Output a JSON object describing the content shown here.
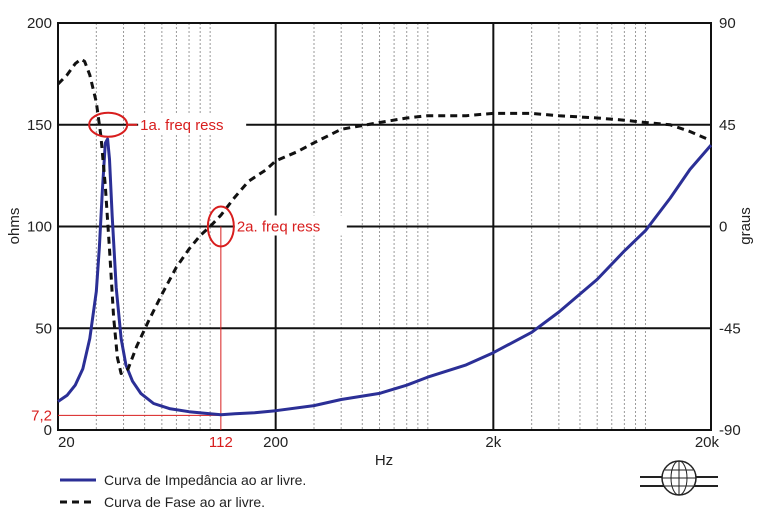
{
  "chart_data": {
    "type": "line",
    "title": "",
    "xlabel": "Hz",
    "ylabel_left": "ohms",
    "ylabel_right": "graus",
    "x_scale": "log",
    "xlim": [
      20,
      20000
    ],
    "ylim_left": [
      0,
      200
    ],
    "ylim_right": [
      -90,
      90
    ],
    "x_ticks": [
      {
        "value": 20,
        "label": "20"
      },
      {
        "value": 200,
        "label": "200"
      },
      {
        "value": 2000,
        "label": "2k"
      },
      {
        "value": 20000,
        "label": "20k"
      }
    ],
    "y_left_ticks": [
      {
        "value": 0,
        "label": "0"
      },
      {
        "value": 50,
        "label": "50"
      },
      {
        "value": 100,
        "label": "100"
      },
      {
        "value": 150,
        "label": "150"
      },
      {
        "value": 200,
        "label": "200"
      }
    ],
    "y_right_ticks": [
      {
        "value": -90,
        "label": "-90"
      },
      {
        "value": -45,
        "label": "-45"
      },
      {
        "value": 0,
        "label": "0"
      },
      {
        "value": 45,
        "label": "45"
      },
      {
        "value": 90,
        "label": "90"
      }
    ],
    "grid": true,
    "legend_position": "bottom-left",
    "series": [
      {
        "name": "Curva de Impedância ao ar livre.",
        "axis": "left",
        "color": "#2b2f96",
        "style": "solid",
        "points": [
          [
            20,
            14
          ],
          [
            22,
            17
          ],
          [
            24,
            22
          ],
          [
            26,
            30
          ],
          [
            28,
            45
          ],
          [
            30,
            68
          ],
          [
            31,
            90
          ],
          [
            32,
            118
          ],
          [
            33,
            141
          ],
          [
            33.8,
            143
          ],
          [
            34.5,
            133
          ],
          [
            35.5,
            105
          ],
          [
            37,
            70
          ],
          [
            39,
            45
          ],
          [
            41,
            32
          ],
          [
            44,
            24
          ],
          [
            48,
            18
          ],
          [
            55,
            13
          ],
          [
            65,
            10.5
          ],
          [
            80,
            9
          ],
          [
            100,
            8
          ],
          [
            112,
            7.5
          ],
          [
            130,
            8
          ],
          [
            160,
            8.5
          ],
          [
            200,
            9.5
          ],
          [
            300,
            12
          ],
          [
            400,
            15
          ],
          [
            600,
            18
          ],
          [
            800,
            22
          ],
          [
            1000,
            26
          ],
          [
            1500,
            32
          ],
          [
            2000,
            38
          ],
          [
            3000,
            48
          ],
          [
            4000,
            58
          ],
          [
            6000,
            74
          ],
          [
            8000,
            88
          ],
          [
            10000,
            98
          ],
          [
            13000,
            114
          ],
          [
            16000,
            128
          ],
          [
            20000,
            140
          ]
        ]
      },
      {
        "name": "Curva de Fase ao ar livre.",
        "axis": "right",
        "color": "#111111",
        "style": "dashed",
        "points": [
          [
            20,
            63
          ],
          [
            22,
            67
          ],
          [
            24,
            72
          ],
          [
            25.5,
            74
          ],
          [
            26.5,
            73
          ],
          [
            28,
            67
          ],
          [
            30,
            55
          ],
          [
            31.5,
            40
          ],
          [
            33,
            18
          ],
          [
            34.5,
            -10
          ],
          [
            36,
            -40
          ],
          [
            37.5,
            -58
          ],
          [
            39,
            -65
          ],
          [
            42,
            -63
          ],
          [
            46,
            -53
          ],
          [
            52,
            -42
          ],
          [
            60,
            -30
          ],
          [
            70,
            -18
          ],
          [
            80,
            -10
          ],
          [
            90,
            -4
          ],
          [
            100,
            0
          ],
          [
            112,
            5
          ],
          [
            130,
            13
          ],
          [
            150,
            20
          ],
          [
            180,
            25
          ],
          [
            200,
            29
          ],
          [
            250,
            33
          ],
          [
            300,
            37
          ],
          [
            400,
            43
          ],
          [
            600,
            46
          ],
          [
            800,
            48
          ],
          [
            1000,
            49
          ],
          [
            1500,
            49
          ],
          [
            2000,
            50
          ],
          [
            3000,
            50
          ],
          [
            4000,
            49
          ],
          [
            6000,
            48
          ],
          [
            8000,
            47
          ],
          [
            10000,
            46
          ],
          [
            13000,
            45
          ],
          [
            16000,
            42
          ],
          [
            20000,
            38
          ]
        ]
      }
    ],
    "annotations": [
      {
        "text": "1a. freq ress",
        "kind": "circle-label",
        "x": 34,
        "y_left": 150
      },
      {
        "text": "2a. freq ress",
        "kind": "circle-label",
        "x": 112,
        "y_left": 100
      }
    ],
    "reference_x": {
      "value": 112,
      "label": "112"
    },
    "reference_y": {
      "value": 7.2,
      "label": "7,2"
    },
    "annotation_color": "#d81e1e",
    "grid_major_color": "#111111",
    "grid_minor_color": "#9a9a9a"
  }
}
